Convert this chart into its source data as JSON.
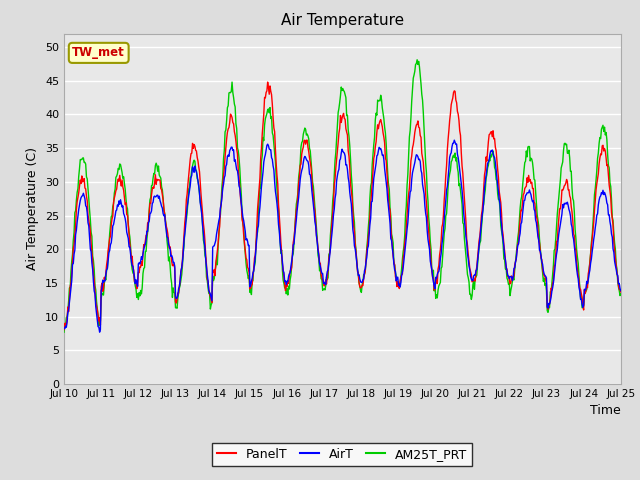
{
  "title": "Air Temperature",
  "ylabel": "Air Temperature (C)",
  "xlabel": "Time",
  "station_label": "TW_met",
  "ylim": [
    0,
    52
  ],
  "yticks": [
    0,
    5,
    10,
    15,
    20,
    25,
    30,
    35,
    40,
    45,
    50
  ],
  "outer_bg": "#dddddd",
  "plot_bg": "#e8e8e8",
  "grid_color": "white",
  "legend_labels": [
    "PanelT",
    "AirT",
    "AM25T_PRT"
  ],
  "panelT_color": "red",
  "airT_color": "blue",
  "am25t_color": "#00cc00",
  "x_tick_labels": [
    "Jul 10",
    "Jul 11",
    "Jul 12",
    "Jul 13",
    "Jul 14",
    "Jul 15",
    "Jul 16",
    "Jul 17",
    "Jul 18",
    "Jul 19",
    "Jul 20",
    "Jul 21",
    "Jul 22",
    "Jul 23",
    "Jul 24",
    "Jul 25"
  ],
  "days": 15,
  "points_per_day": 48
}
